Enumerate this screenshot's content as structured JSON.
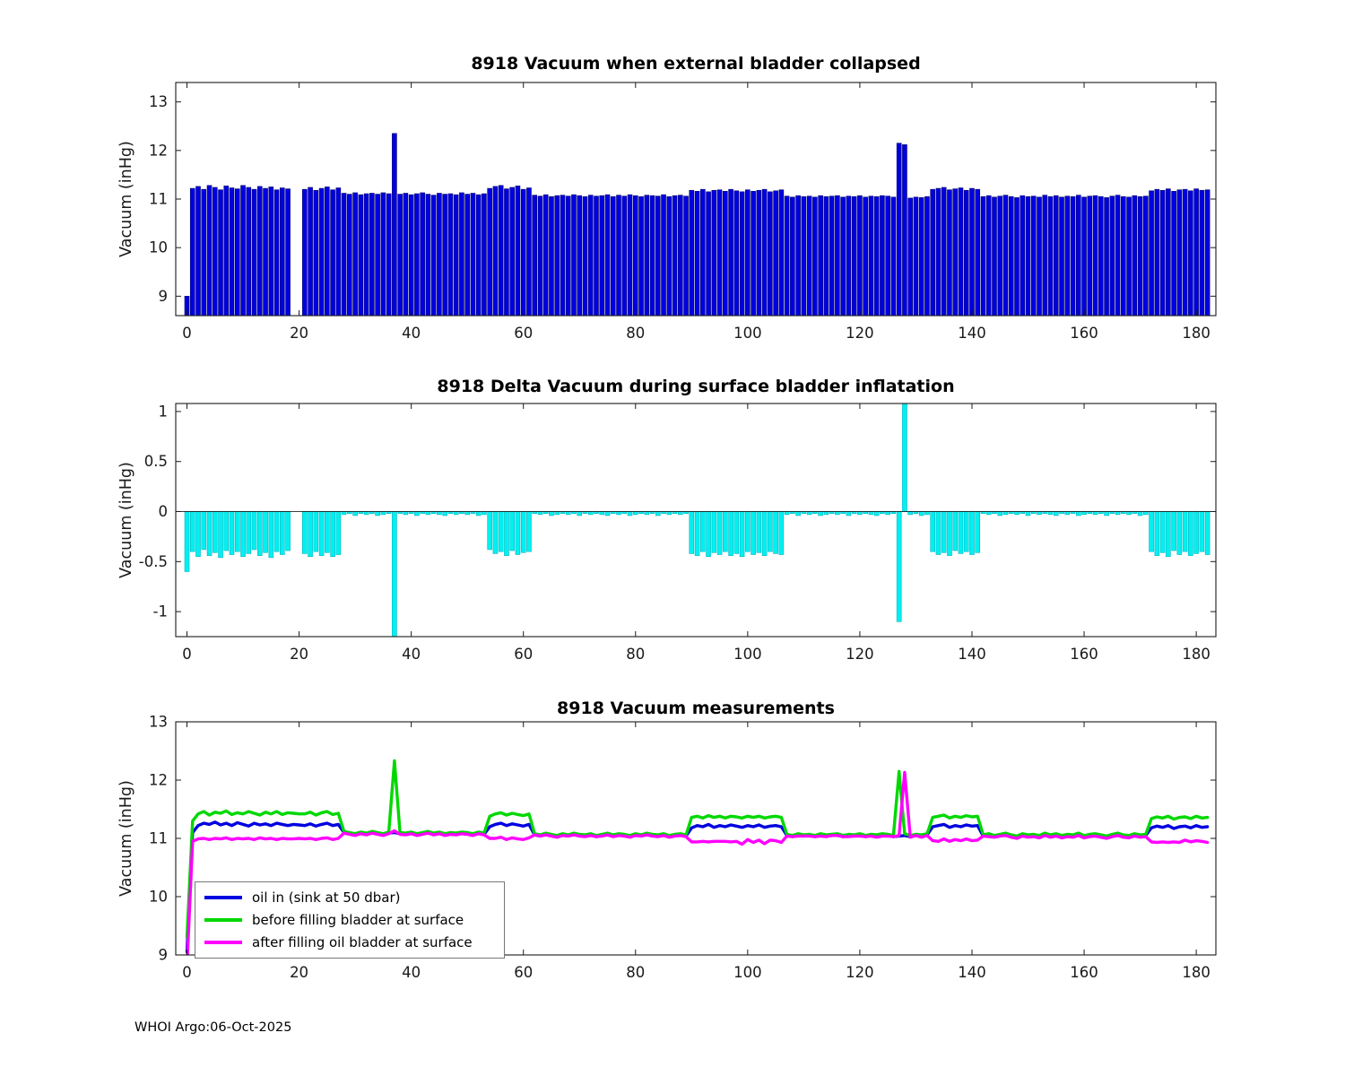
{
  "figure": {
    "footer": "WHOI Argo:06-Oct-2025",
    "background": "#ffffff"
  },
  "chart_data": [
    {
      "type": "bar",
      "title": "8918 Vacuum when external bladder collapsed",
      "ylabel": "Vacuum (inHg)",
      "x_start": 0,
      "x_step": 1,
      "xlim": [
        -2,
        183.5
      ],
      "ylim": [
        8.6,
        13.4
      ],
      "xticks": [
        0,
        20,
        40,
        60,
        80,
        100,
        120,
        140,
        160,
        180
      ],
      "yticks": [
        9,
        10,
        11,
        12,
        13
      ],
      "bar_color": "#0000e0",
      "bar_edge": "#00006a",
      "baseline": "bottom",
      "grid": false,
      "values": [
        9.0,
        11.22,
        11.26,
        11.2,
        11.28,
        11.24,
        11.19,
        11.27,
        11.23,
        11.21,
        11.28,
        11.24,
        11.2,
        11.26,
        11.22,
        11.25,
        11.19,
        11.23,
        11.21,
        null,
        null,
        11.2,
        11.24,
        11.18,
        11.22,
        11.25,
        11.19,
        11.23,
        11.12,
        11.1,
        11.13,
        11.09,
        11.11,
        11.12,
        11.1,
        11.13,
        11.11,
        12.35,
        11.1,
        11.12,
        11.09,
        11.11,
        11.13,
        11.1,
        11.08,
        11.12,
        11.1,
        11.11,
        11.09,
        11.13,
        11.1,
        11.12,
        11.09,
        11.11,
        11.22,
        11.26,
        11.28,
        11.21,
        11.24,
        11.27,
        11.2,
        11.23,
        11.08,
        11.06,
        11.09,
        11.05,
        11.07,
        11.08,
        11.06,
        11.09,
        11.07,
        11.05,
        11.08,
        11.06,
        11.07,
        11.09,
        11.05,
        11.08,
        11.06,
        11.09,
        11.07,
        11.05,
        11.08,
        11.07,
        11.06,
        11.09,
        11.05,
        11.07,
        11.08,
        11.06,
        11.18,
        11.16,
        11.2,
        11.15,
        11.18,
        11.19,
        11.16,
        11.2,
        11.17,
        11.15,
        11.19,
        11.16,
        11.18,
        11.2,
        11.15,
        11.17,
        11.19,
        11.06,
        11.04,
        11.07,
        11.05,
        11.06,
        11.04,
        11.07,
        11.05,
        11.06,
        11.07,
        11.04,
        11.06,
        11.05,
        11.07,
        11.04,
        11.06,
        11.05,
        11.07,
        11.06,
        11.04,
        12.15,
        12.12,
        11.02,
        11.04,
        11.03,
        11.05,
        11.2,
        11.22,
        11.24,
        11.19,
        11.21,
        11.23,
        11.18,
        11.22,
        11.2,
        11.05,
        11.07,
        11.04,
        11.06,
        11.08,
        11.05,
        11.03,
        11.07,
        11.05,
        11.06,
        11.04,
        11.08,
        11.05,
        11.07,
        11.04,
        11.06,
        11.05,
        11.08,
        11.04,
        11.06,
        11.07,
        11.05,
        11.03,
        11.06,
        11.08,
        11.05,
        11.04,
        11.07,
        11.05,
        11.06,
        11.17,
        11.2,
        11.18,
        11.21,
        11.16,
        11.19,
        11.2,
        11.17,
        11.21,
        11.18,
        11.19
      ]
    },
    {
      "type": "bar",
      "title": "8918 Delta Vacuum during surface bladder inflatation",
      "ylabel": "Vacuum (inHg)",
      "x_start": 0,
      "x_step": 1,
      "xlim": [
        -2,
        183.5
      ],
      "ylim": [
        -1.25,
        1.08
      ],
      "xticks": [
        0,
        20,
        40,
        60,
        80,
        100,
        120,
        140,
        160,
        180
      ],
      "yticks": [
        -1,
        -0.5,
        0,
        0.5,
        1
      ],
      "bar_color": "#00f0f0",
      "bar_edge": "#00b4c4",
      "baseline": 0,
      "grid": false,
      "values": [
        -0.6,
        -0.4,
        -0.45,
        -0.38,
        -0.44,
        -0.41,
        -0.46,
        -0.39,
        -0.43,
        -0.4,
        -0.45,
        -0.42,
        -0.38,
        -0.44,
        -0.41,
        -0.46,
        -0.4,
        -0.43,
        -0.39,
        null,
        null,
        -0.42,
        -0.45,
        -0.4,
        -0.44,
        -0.41,
        -0.45,
        -0.43,
        -0.03,
        -0.02,
        -0.04,
        -0.02,
        -0.03,
        -0.02,
        -0.04,
        -0.03,
        -0.02,
        -1.3,
        -0.02,
        -0.03,
        -0.02,
        -0.04,
        -0.02,
        -0.03,
        -0.02,
        -0.03,
        -0.04,
        -0.02,
        -0.03,
        -0.02,
        -0.03,
        -0.02,
        -0.04,
        -0.03,
        -0.38,
        -0.42,
        -0.4,
        -0.44,
        -0.39,
        -0.43,
        -0.41,
        -0.4,
        -0.02,
        -0.03,
        -0.02,
        -0.04,
        -0.03,
        -0.02,
        -0.03,
        -0.02,
        -0.04,
        -0.02,
        -0.03,
        -0.02,
        -0.03,
        -0.04,
        -0.02,
        -0.03,
        -0.02,
        -0.04,
        -0.03,
        -0.02,
        -0.03,
        -0.02,
        -0.04,
        -0.02,
        -0.03,
        -0.02,
        -0.03,
        -0.02,
        -0.42,
        -0.44,
        -0.4,
        -0.45,
        -0.41,
        -0.43,
        -0.4,
        -0.44,
        -0.42,
        -0.45,
        -0.4,
        -0.43,
        -0.41,
        -0.44,
        -0.4,
        -0.42,
        -0.43,
        -0.03,
        -0.02,
        -0.04,
        -0.02,
        -0.03,
        -0.02,
        -0.04,
        -0.03,
        -0.02,
        -0.03,
        -0.02,
        -0.04,
        -0.02,
        -0.03,
        -0.02,
        -0.03,
        -0.04,
        -0.02,
        -0.03,
        -0.02,
        -1.1,
        1.2,
        -0.03,
        -0.02,
        -0.04,
        -0.03,
        -0.4,
        -0.43,
        -0.41,
        -0.44,
        -0.39,
        -0.42,
        -0.4,
        -0.43,
        -0.41,
        -0.02,
        -0.03,
        -0.02,
        -0.04,
        -0.03,
        -0.02,
        -0.03,
        -0.02,
        -0.04,
        -0.02,
        -0.03,
        -0.02,
        -0.03,
        -0.04,
        -0.02,
        -0.03,
        -0.02,
        -0.04,
        -0.03,
        -0.02,
        -0.03,
        -0.02,
        -0.04,
        -0.02,
        -0.03,
        -0.02,
        -0.03,
        -0.02,
        -0.04,
        -0.03,
        -0.4,
        -0.44,
        -0.41,
        -0.45,
        -0.39,
        -0.43,
        -0.4,
        -0.44,
        -0.42,
        -0.4,
        -0.43
      ]
    },
    {
      "type": "line",
      "title": "8918 Vacuum measurements",
      "ylabel": "Vacuum (inHg)",
      "x_start": 0,
      "x_step": 1,
      "xlim": [
        -2,
        183.5
      ],
      "ylim": [
        9,
        13
      ],
      "xticks": [
        0,
        20,
        40,
        60,
        80,
        100,
        120,
        140,
        160,
        180
      ],
      "yticks": [
        9,
        10,
        11,
        12,
        13
      ],
      "grid": false,
      "legend_position": "southwest",
      "series": [
        {
          "name": "oil in (sink at 50 dbar)",
          "color": "#0000e0",
          "values": [
            9.05,
            11.1,
            11.22,
            11.26,
            11.24,
            11.28,
            11.23,
            11.26,
            11.22,
            11.27,
            11.24,
            11.21,
            11.26,
            11.23,
            11.25,
            11.22,
            11.26,
            11.24,
            11.22,
            11.24,
            11.23,
            11.22,
            11.25,
            11.21,
            11.24,
            11.26,
            11.22,
            11.24,
            11.1,
            11.08,
            11.06,
            11.09,
            11.07,
            11.1,
            11.08,
            11.06,
            11.09,
            11.1,
            11.08,
            11.07,
            11.09,
            11.06,
            11.08,
            11.1,
            11.07,
            11.09,
            11.06,
            11.08,
            11.07,
            11.09,
            11.08,
            11.06,
            11.09,
            11.07,
            11.2,
            11.24,
            11.26,
            11.22,
            11.25,
            11.23,
            11.21,
            11.24,
            11.06,
            11.04,
            11.07,
            11.05,
            11.03,
            11.06,
            11.04,
            11.07,
            11.05,
            11.04,
            11.06,
            11.03,
            11.05,
            11.07,
            11.04,
            11.06,
            11.05,
            11.03,
            11.06,
            11.04,
            11.07,
            11.05,
            11.04,
            11.06,
            11.03,
            11.05,
            11.06,
            11.04,
            11.18,
            11.22,
            11.2,
            11.24,
            11.19,
            11.22,
            11.2,
            11.23,
            11.21,
            11.19,
            11.22,
            11.2,
            11.23,
            11.19,
            11.21,
            11.22,
            11.2,
            11.05,
            11.03,
            11.06,
            11.04,
            11.05,
            11.03,
            11.06,
            11.04,
            11.05,
            11.06,
            11.03,
            11.05,
            11.04,
            11.06,
            11.03,
            11.05,
            11.04,
            11.06,
            11.05,
            11.03,
            11.04,
            11.05,
            11.03,
            11.05,
            11.04,
            11.06,
            11.2,
            11.22,
            11.24,
            11.19,
            11.22,
            11.2,
            11.23,
            11.21,
            11.22,
            11.04,
            11.06,
            11.03,
            11.05,
            11.07,
            11.04,
            11.02,
            11.06,
            11.04,
            11.05,
            11.03,
            11.07,
            11.04,
            11.06,
            11.03,
            11.05,
            11.04,
            11.07,
            11.03,
            11.05,
            11.06,
            11.04,
            11.02,
            11.05,
            11.07,
            11.04,
            11.03,
            11.06,
            11.04,
            11.05,
            11.18,
            11.21,
            11.19,
            11.22,
            11.17,
            11.2,
            11.21,
            11.18,
            11.22,
            11.19,
            11.2
          ]
        },
        {
          "name": "before filling bladder at surface",
          "color": "#00d800",
          "values": [
            9.3,
            11.3,
            11.42,
            11.46,
            11.4,
            11.45,
            11.43,
            11.47,
            11.41,
            11.44,
            11.42,
            11.46,
            11.43,
            11.4,
            11.45,
            11.42,
            11.46,
            11.41,
            11.44,
            11.43,
            11.42,
            11.42,
            11.45,
            11.4,
            11.44,
            11.46,
            11.41,
            11.43,
            11.12,
            11.1,
            11.08,
            11.11,
            11.09,
            11.12,
            11.1,
            11.08,
            11.11,
            12.33,
            11.1,
            11.09,
            11.11,
            11.08,
            11.1,
            11.12,
            11.09,
            11.11,
            11.08,
            11.1,
            11.09,
            11.11,
            11.1,
            11.08,
            11.11,
            11.09,
            11.38,
            11.42,
            11.44,
            11.4,
            11.43,
            11.41,
            11.39,
            11.42,
            11.08,
            11.06,
            11.09,
            11.07,
            11.05,
            11.08,
            11.06,
            11.09,
            11.07,
            11.06,
            11.08,
            11.05,
            11.07,
            11.09,
            11.06,
            11.08,
            11.07,
            11.05,
            11.08,
            11.06,
            11.09,
            11.07,
            11.06,
            11.08,
            11.05,
            11.07,
            11.08,
            11.06,
            11.36,
            11.38,
            11.35,
            11.39,
            11.36,
            11.38,
            11.35,
            11.38,
            11.37,
            11.35,
            11.38,
            11.36,
            11.38,
            11.35,
            11.37,
            11.38,
            11.36,
            11.07,
            11.05,
            11.08,
            11.06,
            11.07,
            11.05,
            11.08,
            11.06,
            11.07,
            11.08,
            11.05,
            11.07,
            11.06,
            11.08,
            11.05,
            11.07,
            11.06,
            11.08,
            11.07,
            11.05,
            12.15,
            11.08,
            11.05,
            11.07,
            11.06,
            11.08,
            11.36,
            11.38,
            11.4,
            11.35,
            11.38,
            11.36,
            11.39,
            11.37,
            11.38,
            11.06,
            11.08,
            11.05,
            11.07,
            11.09,
            11.06,
            11.04,
            11.08,
            11.06,
            11.07,
            11.05,
            11.09,
            11.06,
            11.08,
            11.05,
            11.07,
            11.06,
            11.09,
            11.05,
            11.07,
            11.08,
            11.06,
            11.04,
            11.07,
            11.09,
            11.06,
            11.05,
            11.08,
            11.06,
            11.07,
            11.34,
            11.37,
            11.35,
            11.38,
            11.33,
            11.36,
            11.37,
            11.34,
            11.38,
            11.35,
            11.36
          ]
        },
        {
          "name": "after filling oil bladder at surface",
          "color": "#ff00ff",
          "values": [
            8.8,
            10.95,
            10.99,
            11.0,
            10.98,
            11.0,
            10.99,
            11.01,
            10.98,
            11.0,
            10.99,
            11.0,
            10.98,
            11.01,
            10.99,
            11.0,
            10.98,
            11.0,
            10.99,
            10.99,
            11.0,
            10.99,
            11.0,
            10.98,
            11.0,
            11.01,
            10.98,
            11.0,
            11.09,
            11.07,
            11.05,
            11.08,
            11.06,
            11.09,
            11.07,
            11.05,
            11.08,
            11.13,
            11.07,
            11.06,
            11.08,
            11.05,
            11.07,
            11.09,
            11.06,
            11.08,
            11.05,
            11.07,
            11.06,
            11.08,
            11.07,
            11.05,
            11.08,
            11.06,
            11.0,
            11.0,
            11.02,
            10.98,
            11.01,
            10.99,
            10.98,
            11.01,
            11.06,
            11.04,
            11.06,
            11.04,
            11.02,
            11.05,
            11.04,
            11.06,
            11.04,
            11.03,
            11.05,
            11.03,
            11.04,
            11.06,
            11.03,
            11.05,
            11.04,
            11.02,
            11.05,
            11.04,
            11.06,
            11.04,
            11.03,
            11.05,
            11.02,
            11.04,
            11.05,
            11.03,
            10.94,
            10.94,
            10.95,
            10.94,
            10.95,
            10.95,
            10.95,
            10.94,
            10.95,
            10.9,
            10.98,
            10.93,
            10.97,
            10.91,
            10.97,
            10.96,
            10.93,
            11.04,
            11.03,
            11.04,
            11.04,
            11.04,
            11.03,
            11.04,
            11.03,
            11.05,
            11.05,
            11.03,
            11.03,
            11.04,
            11.04,
            11.03,
            11.04,
            11.02,
            11.04,
            11.04,
            11.03,
            11.05,
            12.13,
            11.02,
            11.05,
            11.02,
            11.05,
            10.96,
            10.95,
            10.99,
            10.95,
            10.98,
            10.96,
            10.99,
            10.96,
            10.97,
            11.04,
            11.03,
            11.02,
            11.04,
            11.05,
            11.02,
            11.0,
            11.04,
            11.02,
            11.03,
            11.01,
            11.05,
            11.02,
            11.04,
            11.01,
            11.03,
            11.02,
            11.05,
            11.01,
            11.03,
            11.04,
            11.02,
            11.0,
            11.03,
            11.05,
            11.02,
            11.01,
            11.04,
            11.02,
            11.03,
            10.94,
            10.93,
            10.94,
            10.93,
            10.94,
            10.93,
            10.97,
            10.94,
            10.96,
            10.95,
            10.93
          ]
        }
      ]
    }
  ]
}
